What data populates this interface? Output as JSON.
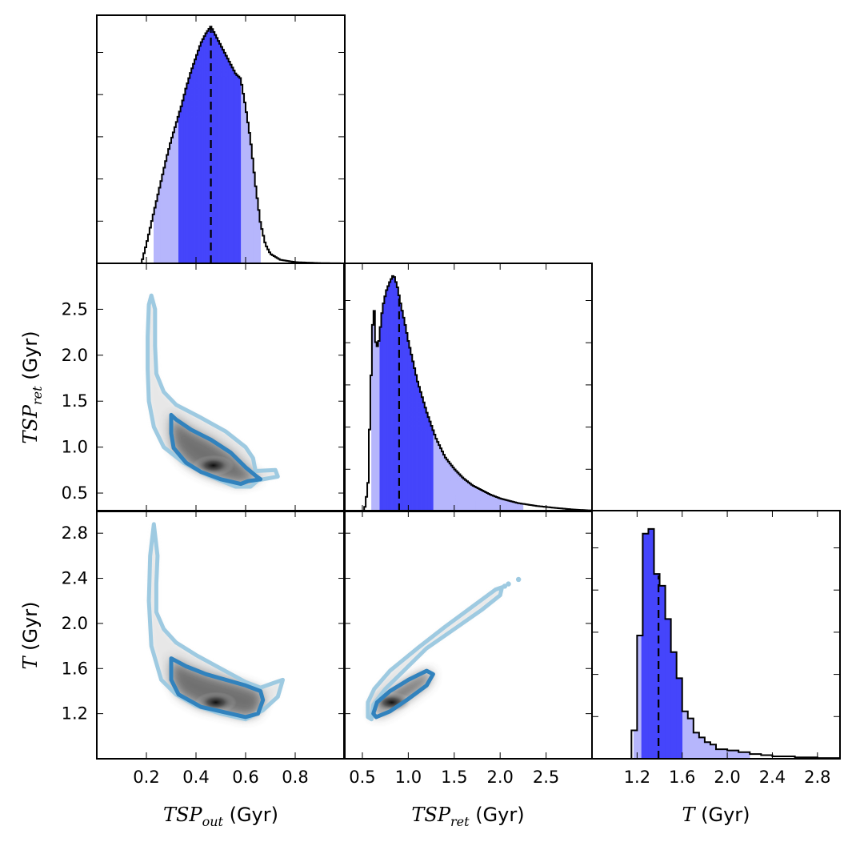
{
  "chart_data": [
    {
      "type": "histogram",
      "panel": "marginal-tsp-out",
      "x_range": [
        0.0,
        1.0
      ],
      "x_ticks": [
        0.2,
        0.4,
        0.6,
        0.8
      ],
      "profile": [
        [
          0.18,
          0.0
        ],
        [
          0.2,
          0.08
        ],
        [
          0.22,
          0.17
        ],
        [
          0.24,
          0.26
        ],
        [
          0.26,
          0.35
        ],
        [
          0.28,
          0.44
        ],
        [
          0.3,
          0.52
        ],
        [
          0.32,
          0.59
        ],
        [
          0.34,
          0.66
        ],
        [
          0.36,
          0.74
        ],
        [
          0.38,
          0.81
        ],
        [
          0.4,
          0.87
        ],
        [
          0.42,
          0.93
        ],
        [
          0.44,
          0.97
        ],
        [
          0.46,
          1.0
        ],
        [
          0.48,
          0.96
        ],
        [
          0.5,
          0.92
        ],
        [
          0.52,
          0.88
        ],
        [
          0.54,
          0.84
        ],
        [
          0.56,
          0.8
        ],
        [
          0.58,
          0.78
        ],
        [
          0.6,
          0.66
        ],
        [
          0.62,
          0.52
        ],
        [
          0.64,
          0.33
        ],
        [
          0.66,
          0.17
        ],
        [
          0.68,
          0.08
        ],
        [
          0.7,
          0.04
        ],
        [
          0.74,
          0.015
        ],
        [
          0.8,
          0.005
        ],
        [
          0.9,
          0.001
        ],
        [
          1.0,
          0.0
        ]
      ],
      "median": 0.46,
      "interval_68": [
        0.33,
        0.58
      ],
      "interval_95": [
        0.23,
        0.66
      ],
      "colors": {
        "inner": "#4545fb",
        "outer": "#b6b6fc",
        "line": "#000000"
      }
    },
    {
      "type": "histogram",
      "panel": "marginal-tsp-ret",
      "x_range": [
        0.3,
        3.0
      ],
      "x_ticks": [
        0.5,
        1.0,
        1.5,
        2.0,
        2.5
      ],
      "profile": [
        [
          0.52,
          0.0
        ],
        [
          0.56,
          0.1
        ],
        [
          0.59,
          0.5
        ],
        [
          0.61,
          0.78
        ],
        [
          0.63,
          0.85
        ],
        [
          0.65,
          0.68
        ],
        [
          0.68,
          0.72
        ],
        [
          0.72,
          0.86
        ],
        [
          0.76,
          0.93
        ],
        [
          0.8,
          0.97
        ],
        [
          0.84,
          1.0
        ],
        [
          0.88,
          0.95
        ],
        [
          0.92,
          0.87
        ],
        [
          0.96,
          0.8
        ],
        [
          1.0,
          0.72
        ],
        [
          1.1,
          0.55
        ],
        [
          1.2,
          0.42
        ],
        [
          1.3,
          0.31
        ],
        [
          1.4,
          0.23
        ],
        [
          1.5,
          0.18
        ],
        [
          1.6,
          0.14
        ],
        [
          1.7,
          0.11
        ],
        [
          1.8,
          0.09
        ],
        [
          1.9,
          0.07
        ],
        [
          2.0,
          0.055
        ],
        [
          2.2,
          0.035
        ],
        [
          2.4,
          0.023
        ],
        [
          2.6,
          0.015
        ],
        [
          2.8,
          0.008
        ],
        [
          3.0,
          0.004
        ]
      ],
      "median": 0.9,
      "interval_68": [
        0.69,
        1.27
      ],
      "interval_95": [
        0.6,
        2.25
      ],
      "colors": {
        "inner": "#4545fb",
        "outer": "#b6b6fc",
        "line": "#000000"
      }
    },
    {
      "type": "histogram",
      "panel": "marginal-t",
      "x_range": [
        0.8,
        3.0
      ],
      "x_ticks": [
        1.2,
        1.6,
        2.0,
        2.4,
        2.8
      ],
      "bins": [
        [
          1.05,
          1.15,
          0.0
        ],
        [
          1.15,
          1.2,
          0.12
        ],
        [
          1.2,
          1.25,
          0.52
        ],
        [
          1.25,
          1.3,
          0.95
        ],
        [
          1.3,
          1.35,
          0.97
        ],
        [
          1.35,
          1.4,
          0.78
        ],
        [
          1.4,
          1.45,
          0.73
        ],
        [
          1.45,
          1.5,
          0.59
        ],
        [
          1.5,
          1.55,
          0.45
        ],
        [
          1.55,
          1.6,
          0.34
        ],
        [
          1.6,
          1.65,
          0.2
        ],
        [
          1.65,
          1.7,
          0.17
        ],
        [
          1.7,
          1.75,
          0.11
        ],
        [
          1.75,
          1.8,
          0.09
        ],
        [
          1.8,
          1.85,
          0.07
        ],
        [
          1.85,
          1.9,
          0.06
        ],
        [
          1.9,
          2.0,
          0.04
        ],
        [
          2.0,
          2.1,
          0.035
        ],
        [
          2.1,
          2.2,
          0.028
        ],
        [
          2.2,
          2.3,
          0.02
        ],
        [
          2.3,
          2.4,
          0.015
        ],
        [
          2.4,
          2.6,
          0.01
        ],
        [
          2.6,
          2.8,
          0.006
        ],
        [
          2.8,
          3.0,
          0.003
        ]
      ],
      "median": 1.39,
      "interval_68": [
        1.24,
        1.6
      ],
      "interval_95": [
        1.17,
        2.2
      ],
      "colors": {
        "inner": "#4545fb",
        "outer": "#b6b6fc",
        "line": "#000000"
      }
    },
    {
      "type": "contour",
      "panel": "joint-tsp-out-vs-tsp-ret",
      "x_range": [
        0.0,
        1.0
      ],
      "y_range": [
        0.3,
        3.0
      ],
      "x_ticks": [
        0.2,
        0.4,
        0.6,
        0.8
      ],
      "y_ticks": [
        0.5,
        1.0,
        1.5,
        2.0,
        2.5
      ],
      "contour_95": [
        [
          0.22,
          2.65
        ],
        [
          0.235,
          2.5
        ],
        [
          0.235,
          2.1
        ],
        [
          0.24,
          1.8
        ],
        [
          0.27,
          1.6
        ],
        [
          0.32,
          1.46
        ],
        [
          0.42,
          1.32
        ],
        [
          0.52,
          1.17
        ],
        [
          0.6,
          1.0
        ],
        [
          0.63,
          0.88
        ],
        [
          0.64,
          0.74
        ],
        [
          0.72,
          0.75
        ],
        [
          0.73,
          0.68
        ],
        [
          0.65,
          0.64
        ],
        [
          0.62,
          0.57
        ],
        [
          0.56,
          0.57
        ],
        [
          0.45,
          0.69
        ],
        [
          0.35,
          0.83
        ],
        [
          0.27,
          1.0
        ],
        [
          0.23,
          1.22
        ],
        [
          0.21,
          1.5
        ],
        [
          0.205,
          1.85
        ],
        [
          0.205,
          2.2
        ],
        [
          0.21,
          2.55
        ],
        [
          0.22,
          2.65
        ]
      ],
      "contour_68": [
        [
          0.3,
          1.35
        ],
        [
          0.32,
          1.3
        ],
        [
          0.38,
          1.19
        ],
        [
          0.46,
          1.08
        ],
        [
          0.54,
          0.94
        ],
        [
          0.6,
          0.78
        ],
        [
          0.64,
          0.69
        ],
        [
          0.66,
          0.65
        ],
        [
          0.61,
          0.63
        ],
        [
          0.58,
          0.6
        ],
        [
          0.5,
          0.65
        ],
        [
          0.42,
          0.73
        ],
        [
          0.36,
          0.83
        ],
        [
          0.31,
          0.99
        ],
        [
          0.3,
          1.15
        ],
        [
          0.3,
          1.35
        ]
      ],
      "density_core": {
        "x": 0.47,
        "y": 0.8
      },
      "colors": {
        "outer": "#9ecae1",
        "inner": "#3182bd",
        "density": "#000000"
      }
    },
    {
      "type": "contour",
      "panel": "joint-tsp-out-vs-t",
      "x_range": [
        0.0,
        1.0
      ],
      "y_range": [
        0.8,
        3.0
      ],
      "x_ticks": [
        0.2,
        0.4,
        0.6,
        0.8
      ],
      "y_ticks": [
        1.2,
        1.6,
        2.0,
        2.4,
        2.8
      ],
      "contour_95": [
        [
          0.23,
          2.88
        ],
        [
          0.245,
          2.6
        ],
        [
          0.24,
          2.35
        ],
        [
          0.24,
          2.1
        ],
        [
          0.27,
          1.95
        ],
        [
          0.32,
          1.83
        ],
        [
          0.4,
          1.72
        ],
        [
          0.5,
          1.6
        ],
        [
          0.6,
          1.48
        ],
        [
          0.66,
          1.43
        ],
        [
          0.71,
          1.47
        ],
        [
          0.75,
          1.5
        ],
        [
          0.73,
          1.35
        ],
        [
          0.67,
          1.23
        ],
        [
          0.6,
          1.15
        ],
        [
          0.5,
          1.2
        ],
        [
          0.4,
          1.27
        ],
        [
          0.32,
          1.37
        ],
        [
          0.26,
          1.5
        ],
        [
          0.22,
          1.8
        ],
        [
          0.21,
          2.2
        ],
        [
          0.215,
          2.6
        ],
        [
          0.23,
          2.88
        ]
      ],
      "contour_68": [
        [
          0.3,
          1.69
        ],
        [
          0.36,
          1.62
        ],
        [
          0.44,
          1.55
        ],
        [
          0.52,
          1.5
        ],
        [
          0.6,
          1.45
        ],
        [
          0.66,
          1.4
        ],
        [
          0.67,
          1.32
        ],
        [
          0.65,
          1.2
        ],
        [
          0.6,
          1.17
        ],
        [
          0.5,
          1.22
        ],
        [
          0.42,
          1.26
        ],
        [
          0.33,
          1.37
        ],
        [
          0.3,
          1.5
        ],
        [
          0.3,
          1.69
        ]
      ],
      "density_core": {
        "x": 0.48,
        "y": 1.3
      },
      "colors": {
        "outer": "#9ecae1",
        "inner": "#3182bd",
        "density": "#000000"
      }
    },
    {
      "type": "contour",
      "panel": "joint-tsp-ret-vs-t",
      "x_range": [
        0.3,
        3.0
      ],
      "y_range": [
        0.8,
        3.0
      ],
      "x_ticks": [
        0.5,
        1.0,
        1.5,
        2.0,
        2.5
      ],
      "y_ticks": [
        1.2,
        1.6,
        2.0,
        2.4,
        2.8
      ],
      "contour_95": [
        [
          0.6,
          1.15
        ],
        [
          0.62,
          1.28
        ],
        [
          0.75,
          1.42
        ],
        [
          0.95,
          1.58
        ],
        [
          1.2,
          1.78
        ],
        [
          1.5,
          1.95
        ],
        [
          1.8,
          2.12
        ],
        [
          2.0,
          2.25
        ],
        [
          2.02,
          2.32
        ],
        [
          1.95,
          2.3
        ],
        [
          1.7,
          2.15
        ],
        [
          1.4,
          1.97
        ],
        [
          1.1,
          1.78
        ],
        [
          0.8,
          1.58
        ],
        [
          0.63,
          1.42
        ],
        [
          0.56,
          1.3
        ],
        [
          0.56,
          1.17
        ],
        [
          0.6,
          1.15
        ]
      ],
      "contour_68": [
        [
          0.62,
          1.2
        ],
        [
          0.66,
          1.3
        ],
        [
          0.8,
          1.4
        ],
        [
          1.0,
          1.5
        ],
        [
          1.2,
          1.58
        ],
        [
          1.27,
          1.55
        ],
        [
          1.2,
          1.45
        ],
        [
          1.0,
          1.33
        ],
        [
          0.8,
          1.22
        ],
        [
          0.65,
          1.17
        ],
        [
          0.62,
          1.2
        ]
      ],
      "outlier_points": [
        [
          2.05,
          2.33
        ],
        [
          2.09,
          2.35
        ],
        [
          2.2,
          2.39
        ]
      ],
      "density_core": {
        "x": 0.82,
        "y": 1.3
      },
      "colors": {
        "outer": "#9ecae1",
        "inner": "#3182bd",
        "density": "#000000"
      }
    }
  ],
  "axes": {
    "col1_label": {
      "math": "TSP",
      "sub": "out",
      "unit": " (Gyr)"
    },
    "col2_label": {
      "math": "TSP",
      "sub": "ret",
      "unit": " (Gyr)"
    },
    "col3_label": {
      "math": "T",
      "sub": "",
      "unit": " (Gyr)"
    },
    "row2_label": {
      "math": "TSP",
      "sub": "ret",
      "unit": " (Gyr)"
    },
    "row3_label": {
      "math": "T",
      "sub": "",
      "unit": " (Gyr)"
    }
  }
}
